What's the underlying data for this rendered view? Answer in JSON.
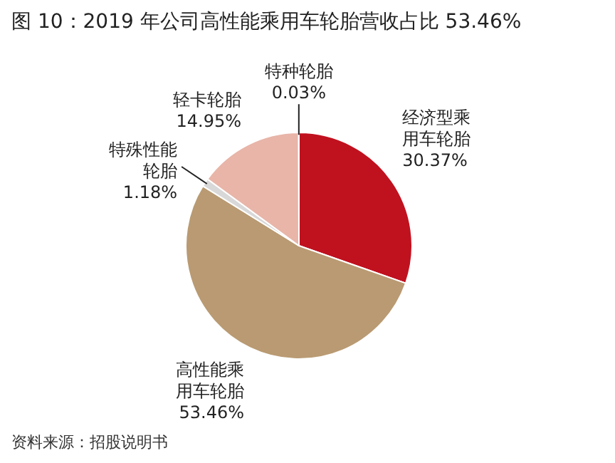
{
  "chart_data": {
    "type": "pie",
    "title": "图 10：2019 年公司高性能乘用车轮胎营收占比 53.46%",
    "categories": [
      "经济型乘用车轮胎",
      "高性能乘用车轮胎",
      "特殊性能轮胎",
      "轻卡轮胎",
      "特种轮胎"
    ],
    "values": [
      30.37,
      53.46,
      1.18,
      14.95,
      0.03
    ],
    "value_labels": [
      "30.37%",
      "53.46%",
      "1.18%",
      "14.95%",
      "0.03%"
    ],
    "colors": [
      "#c0111f",
      "#b99a72",
      "#d8d8d8",
      "#e8b5a8",
      "#f4e4de"
    ],
    "legend": false,
    "annotations": [
      "资料来源：招股说明书"
    ]
  }
}
